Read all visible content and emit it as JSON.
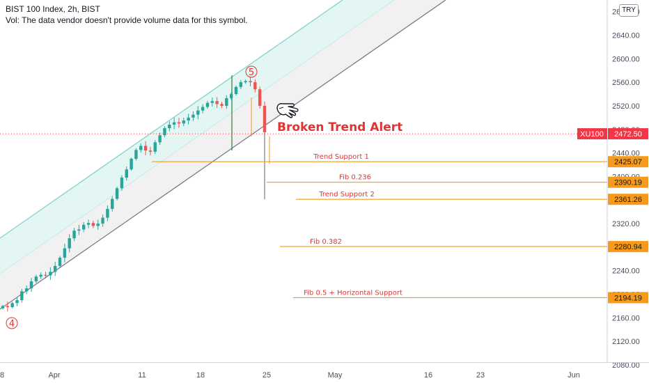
{
  "header": {
    "title": "BIST 100 Index, 2h, BIST",
    "vol_note": "Vol: The data vendor doesn't provide volume data for this symbol."
  },
  "currency": "TRY",
  "colors": {
    "up": "#26a69a",
    "down": "#ef5350",
    "level": "#f59a1a",
    "channel_upper": "#7fd3cc",
    "channel_fill_upper": "#e4f6f4",
    "channel_fill_lower": "#f1f1f2",
    "channel_lower": "#7b7b85",
    "alert_red": "#e03434",
    "tag_red": "#f23645"
  },
  "annotation": {
    "alert_text": "Broken Trend Alert",
    "wave_start": "4",
    "wave_end": "5",
    "pointer_icon": "pointing-hand-icon"
  },
  "chart_data": {
    "type": "candlestick",
    "symbol": "XU100",
    "last_price": "2472.50",
    "ylim": [
      2075,
      2730
    ],
    "y_ticks": [
      "2680.00",
      "2640.00",
      "2600.00",
      "2560.00",
      "2520.00",
      "2480.00",
      "2440.00",
      "2400.00",
      "2360.00",
      "2320.00",
      "2280.00",
      "2240.00",
      "2200.00",
      "2160.00",
      "2120.00",
      "2080.00"
    ],
    "x_ticks": [
      "8",
      "Apr",
      "11",
      "18",
      "25",
      "May",
      "16",
      "23",
      "Jun"
    ],
    "levels": [
      {
        "name": "Trend Support 1",
        "value": 2425.07,
        "label": "2425.07"
      },
      {
        "name": "Fib 0.236",
        "value": 2390.19,
        "label": "2390.19"
      },
      {
        "name": "Trend Support 2",
        "value": 2361.26,
        "label": "2361.26"
      },
      {
        "name": "Fib 0.382",
        "value": 2280.94,
        "label": "2280.94"
      },
      {
        "name": "Fib 0.5 + Horizontal Support",
        "value": 2194.19,
        "label": "2194.19"
      }
    ],
    "price_path": [
      2180,
      2178,
      2185,
      2190,
      2205,
      2210,
      2222,
      2230,
      2233,
      2232,
      2238,
      2248,
      2262,
      2278,
      2295,
      2308,
      2310,
      2318,
      2321,
      2316,
      2320,
      2330,
      2345,
      2362,
      2380,
      2398,
      2412,
      2430,
      2445,
      2452,
      2444,
      2442,
      2458,
      2470,
      2482,
      2488,
      2492,
      2490,
      2495,
      2500,
      2505,
      2512,
      2518,
      2525,
      2528,
      2523,
      2520,
      2533,
      2540,
      2552,
      2560,
      2562,
      2560,
      2548,
      2520,
      2475
    ]
  }
}
